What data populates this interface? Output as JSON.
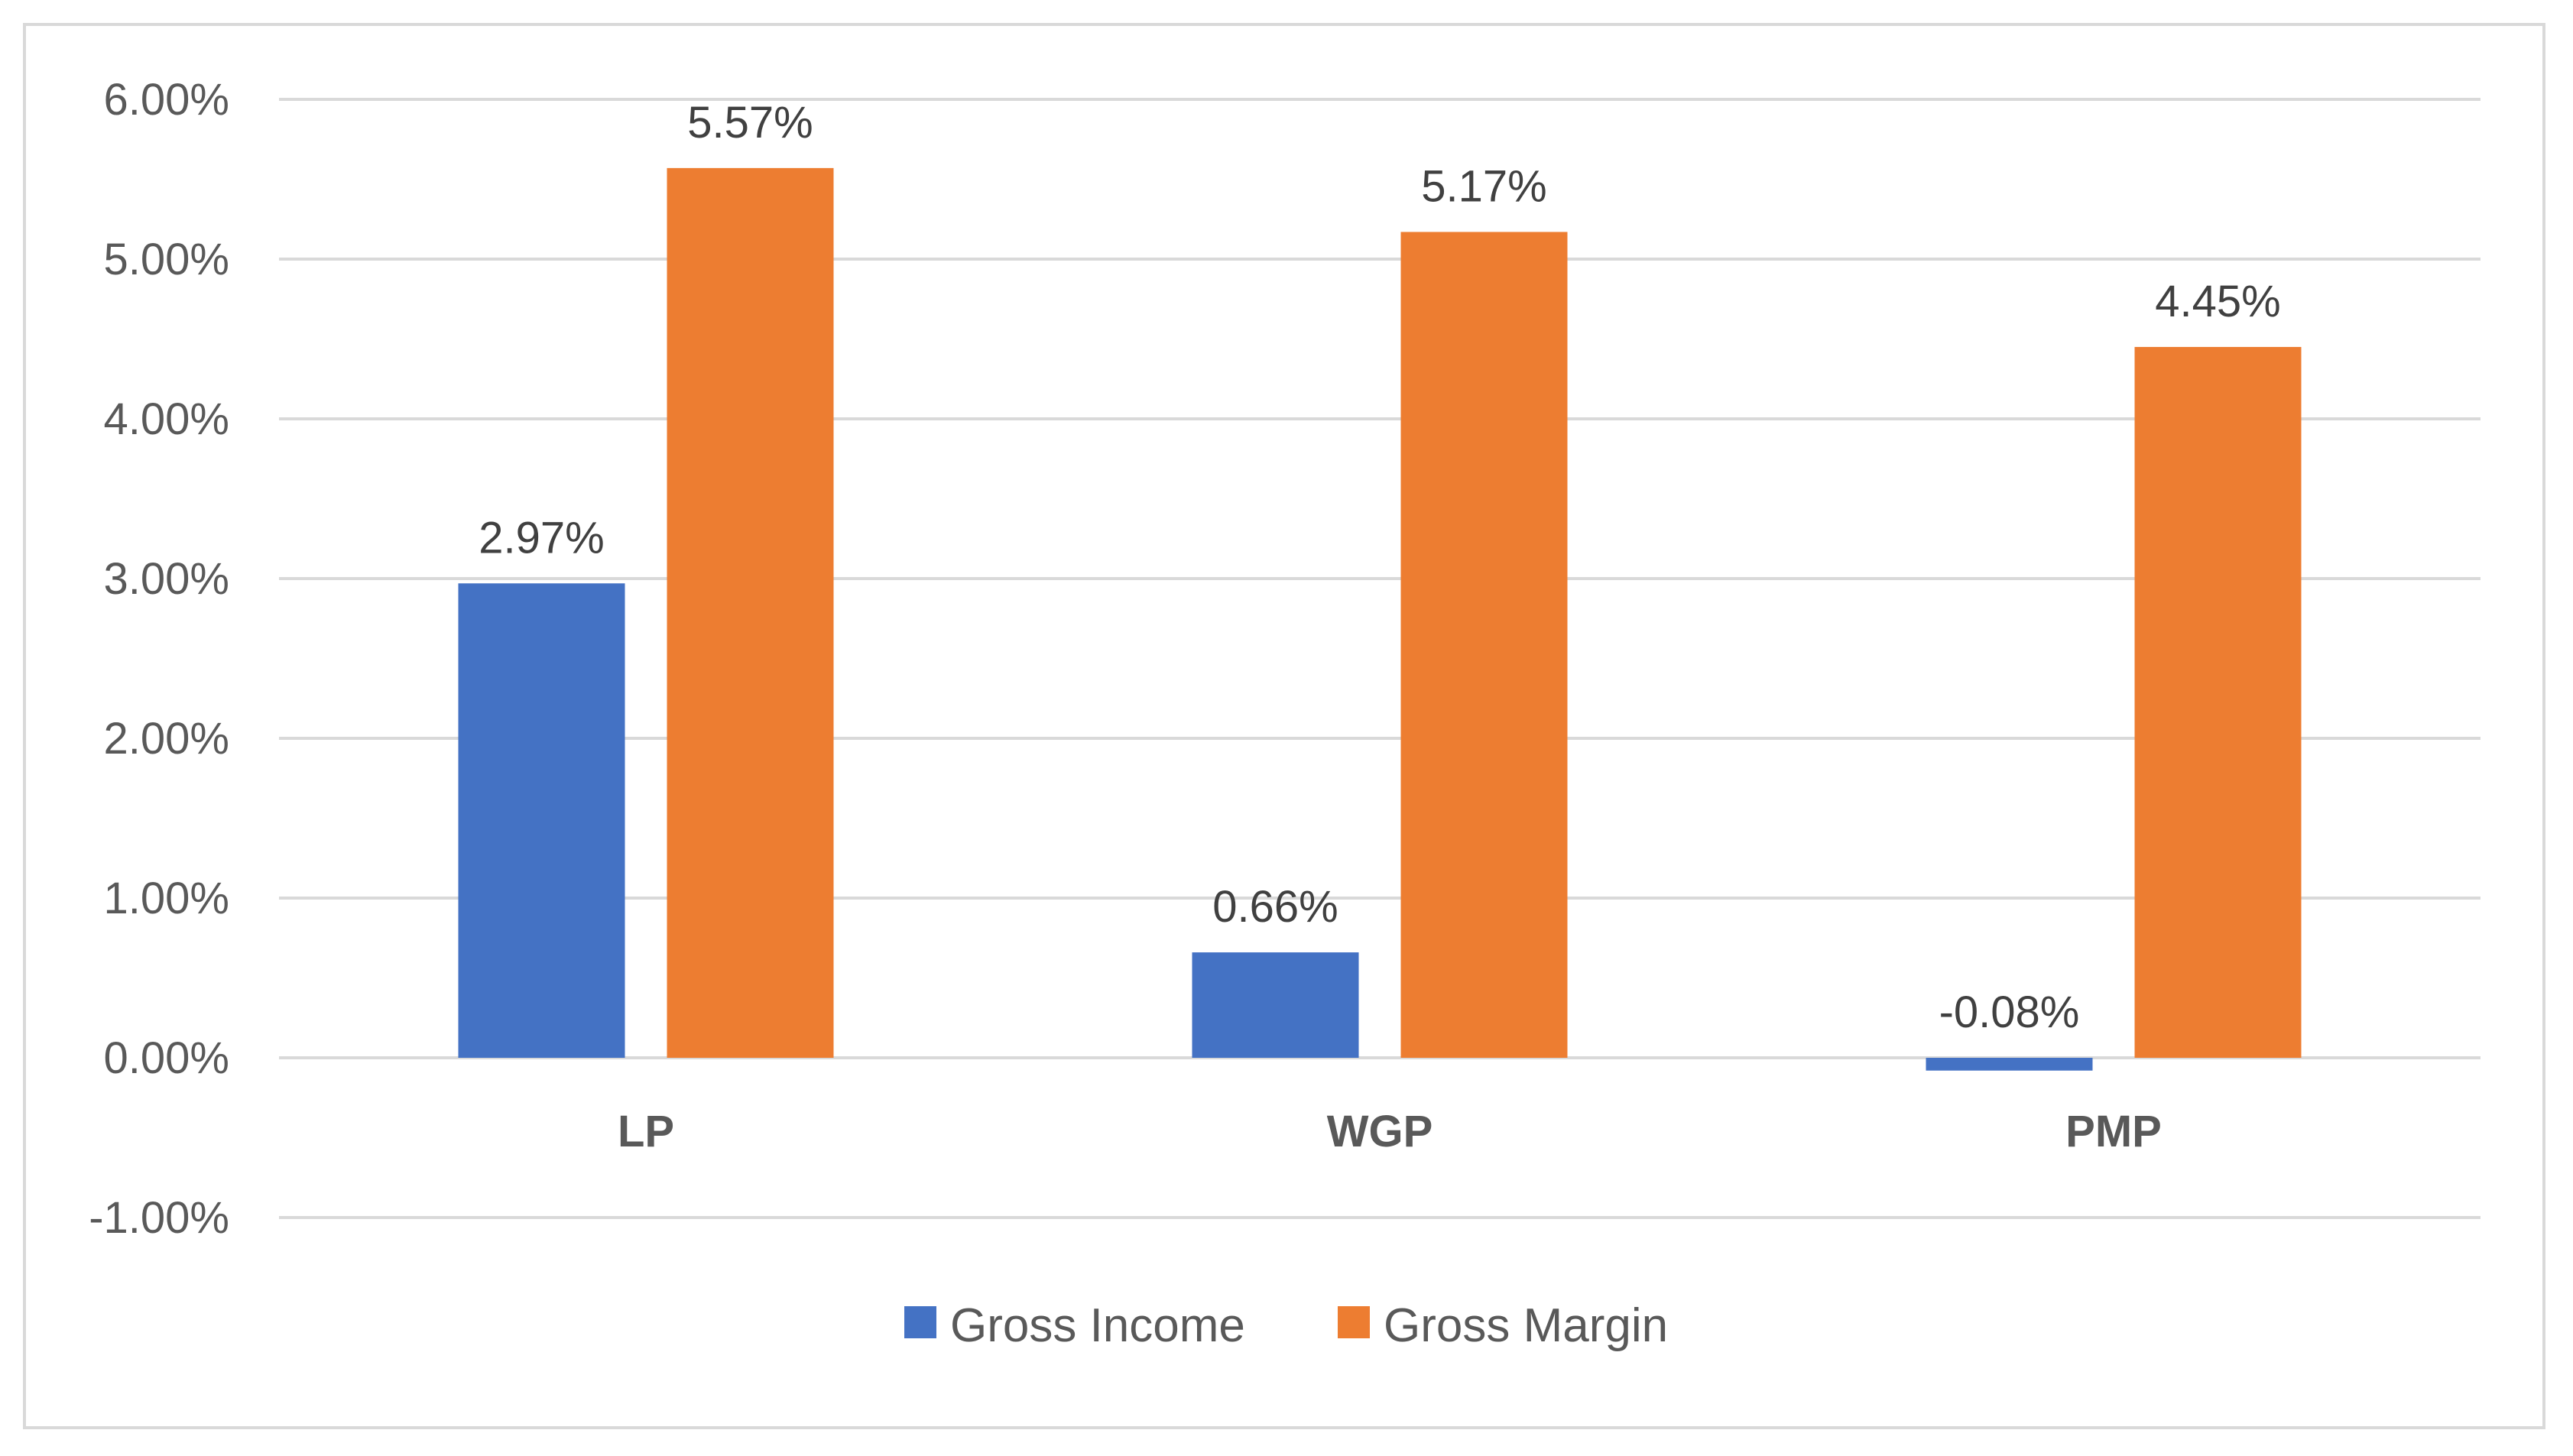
{
  "chart_data": {
    "type": "bar",
    "title": "",
    "xlabel": "",
    "ylabel": "",
    "categories": [
      "LP",
      "WGP",
      "PMP"
    ],
    "series": [
      {
        "name": "Gross Income",
        "color": "#4472c4",
        "values": [
          2.97,
          0.66,
          -0.08
        ],
        "labels": [
          "2.97%",
          "0.66%",
          "-0.08%"
        ]
      },
      {
        "name": "Gross Margin",
        "color": "#ed7d31",
        "values": [
          5.57,
          5.17,
          4.45
        ],
        "labels": [
          "5.57%",
          "5.17%",
          "4.45%"
        ]
      }
    ],
    "ylim": [
      -1,
      6
    ],
    "yticks": [
      6,
      5,
      4,
      3,
      2,
      1,
      0,
      -1
    ],
    "ytick_labels": [
      "6.00%",
      "5.00%",
      "4.00%",
      "3.00%",
      "2.00%",
      "1.00%",
      "0.00%",
      "-1.00%"
    ],
    "grid": true,
    "legend": "bottom"
  }
}
